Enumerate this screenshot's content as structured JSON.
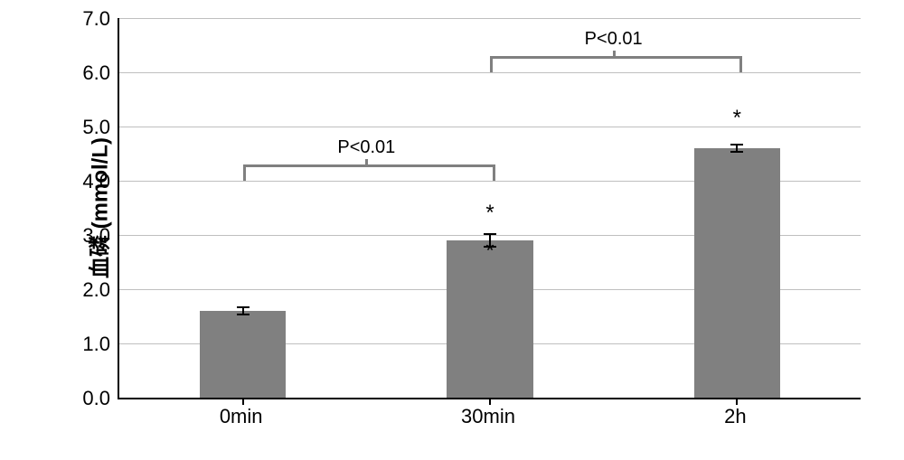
{
  "chart": {
    "type": "bar",
    "y_axis_title": "血磷 (mmol/L)",
    "ylim": [
      0.0,
      7.0
    ],
    "ytick_step": 1.0,
    "y_ticks": [
      "0.0",
      "1.0",
      "2.0",
      "3.0",
      "4.0",
      "5.0",
      "6.0",
      "7.0"
    ],
    "categories": [
      "0min",
      "30min",
      "2h"
    ],
    "values": [
      1.6,
      2.9,
      4.6
    ],
    "errors": [
      0.07,
      0.12,
      0.07
    ],
    "bar_color": "#808080",
    "grid_color": "#bfbfbf",
    "axis_color": "#000000",
    "background_color": "#ffffff",
    "bar_width_ratio": 0.35,
    "label_fontsize": 22,
    "title_fontsize": 24,
    "sig_markers": [
      {
        "bar_index": 1,
        "offset_u": 0.5,
        "text": "*"
      },
      {
        "bar_index": 1,
        "offset_u": -0.2,
        "text": "*"
      },
      {
        "bar_index": 2,
        "offset_u": 0.55,
        "text": "*"
      }
    ],
    "brackets": [
      {
        "from_bar": 0,
        "to_bar": 1,
        "y": 4.3,
        "drop": 0.25,
        "label": "P<0.01"
      },
      {
        "from_bar": 1,
        "to_bar": 2,
        "y": 6.3,
        "drop": 0.25,
        "label": "P<0.01"
      }
    ]
  }
}
